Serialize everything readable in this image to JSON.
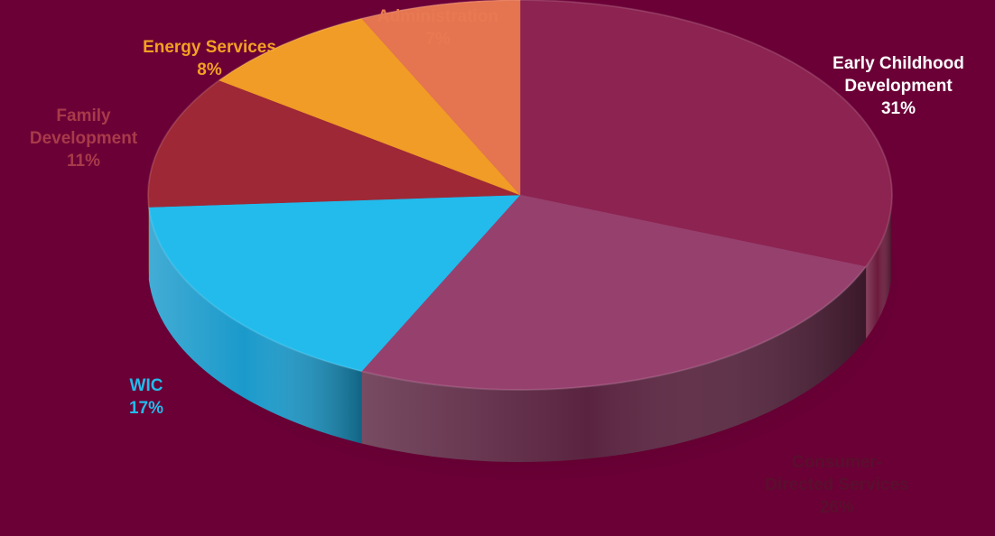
{
  "chart_data": {
    "type": "pie",
    "style": "3d-tilted",
    "background": "#6b0036",
    "slices": [
      {
        "label": [
          "Early Childhood",
          "Development"
        ],
        "pct": "31%",
        "value": 31,
        "color": "#8c2350",
        "side": "#6b1a3c",
        "label_color": "#ffffff"
      },
      {
        "label": [
          "Consumer-",
          "Directed Services"
        ],
        "pct": "26%",
        "value": 26,
        "color": "#96406e",
        "side": "#5a2440",
        "label_color": "#5a0f2e"
      },
      {
        "label": [
          "WIC"
        ],
        "pct": "17%",
        "value": 17,
        "color": "#22bbec",
        "side": "#1a9acb",
        "label_color": "#22bbec"
      },
      {
        "label": [
          "Family",
          "Development"
        ],
        "pct": "11%",
        "value": 11,
        "color": "#9e2836",
        "side": "#7d1e2a",
        "label_color": "#a83a4a"
      },
      {
        "label": [
          "Energy Services"
        ],
        "pct": "8%",
        "value": 8,
        "color": "#f09c26",
        "side": "#c07a18",
        "label_color": "#f3a024"
      },
      {
        "label": [
          "Administration"
        ],
        "pct": "7%",
        "value": 7,
        "color": "#e57450",
        "side": "#b85a3c",
        "label_color": "#e87a52"
      }
    ]
  }
}
